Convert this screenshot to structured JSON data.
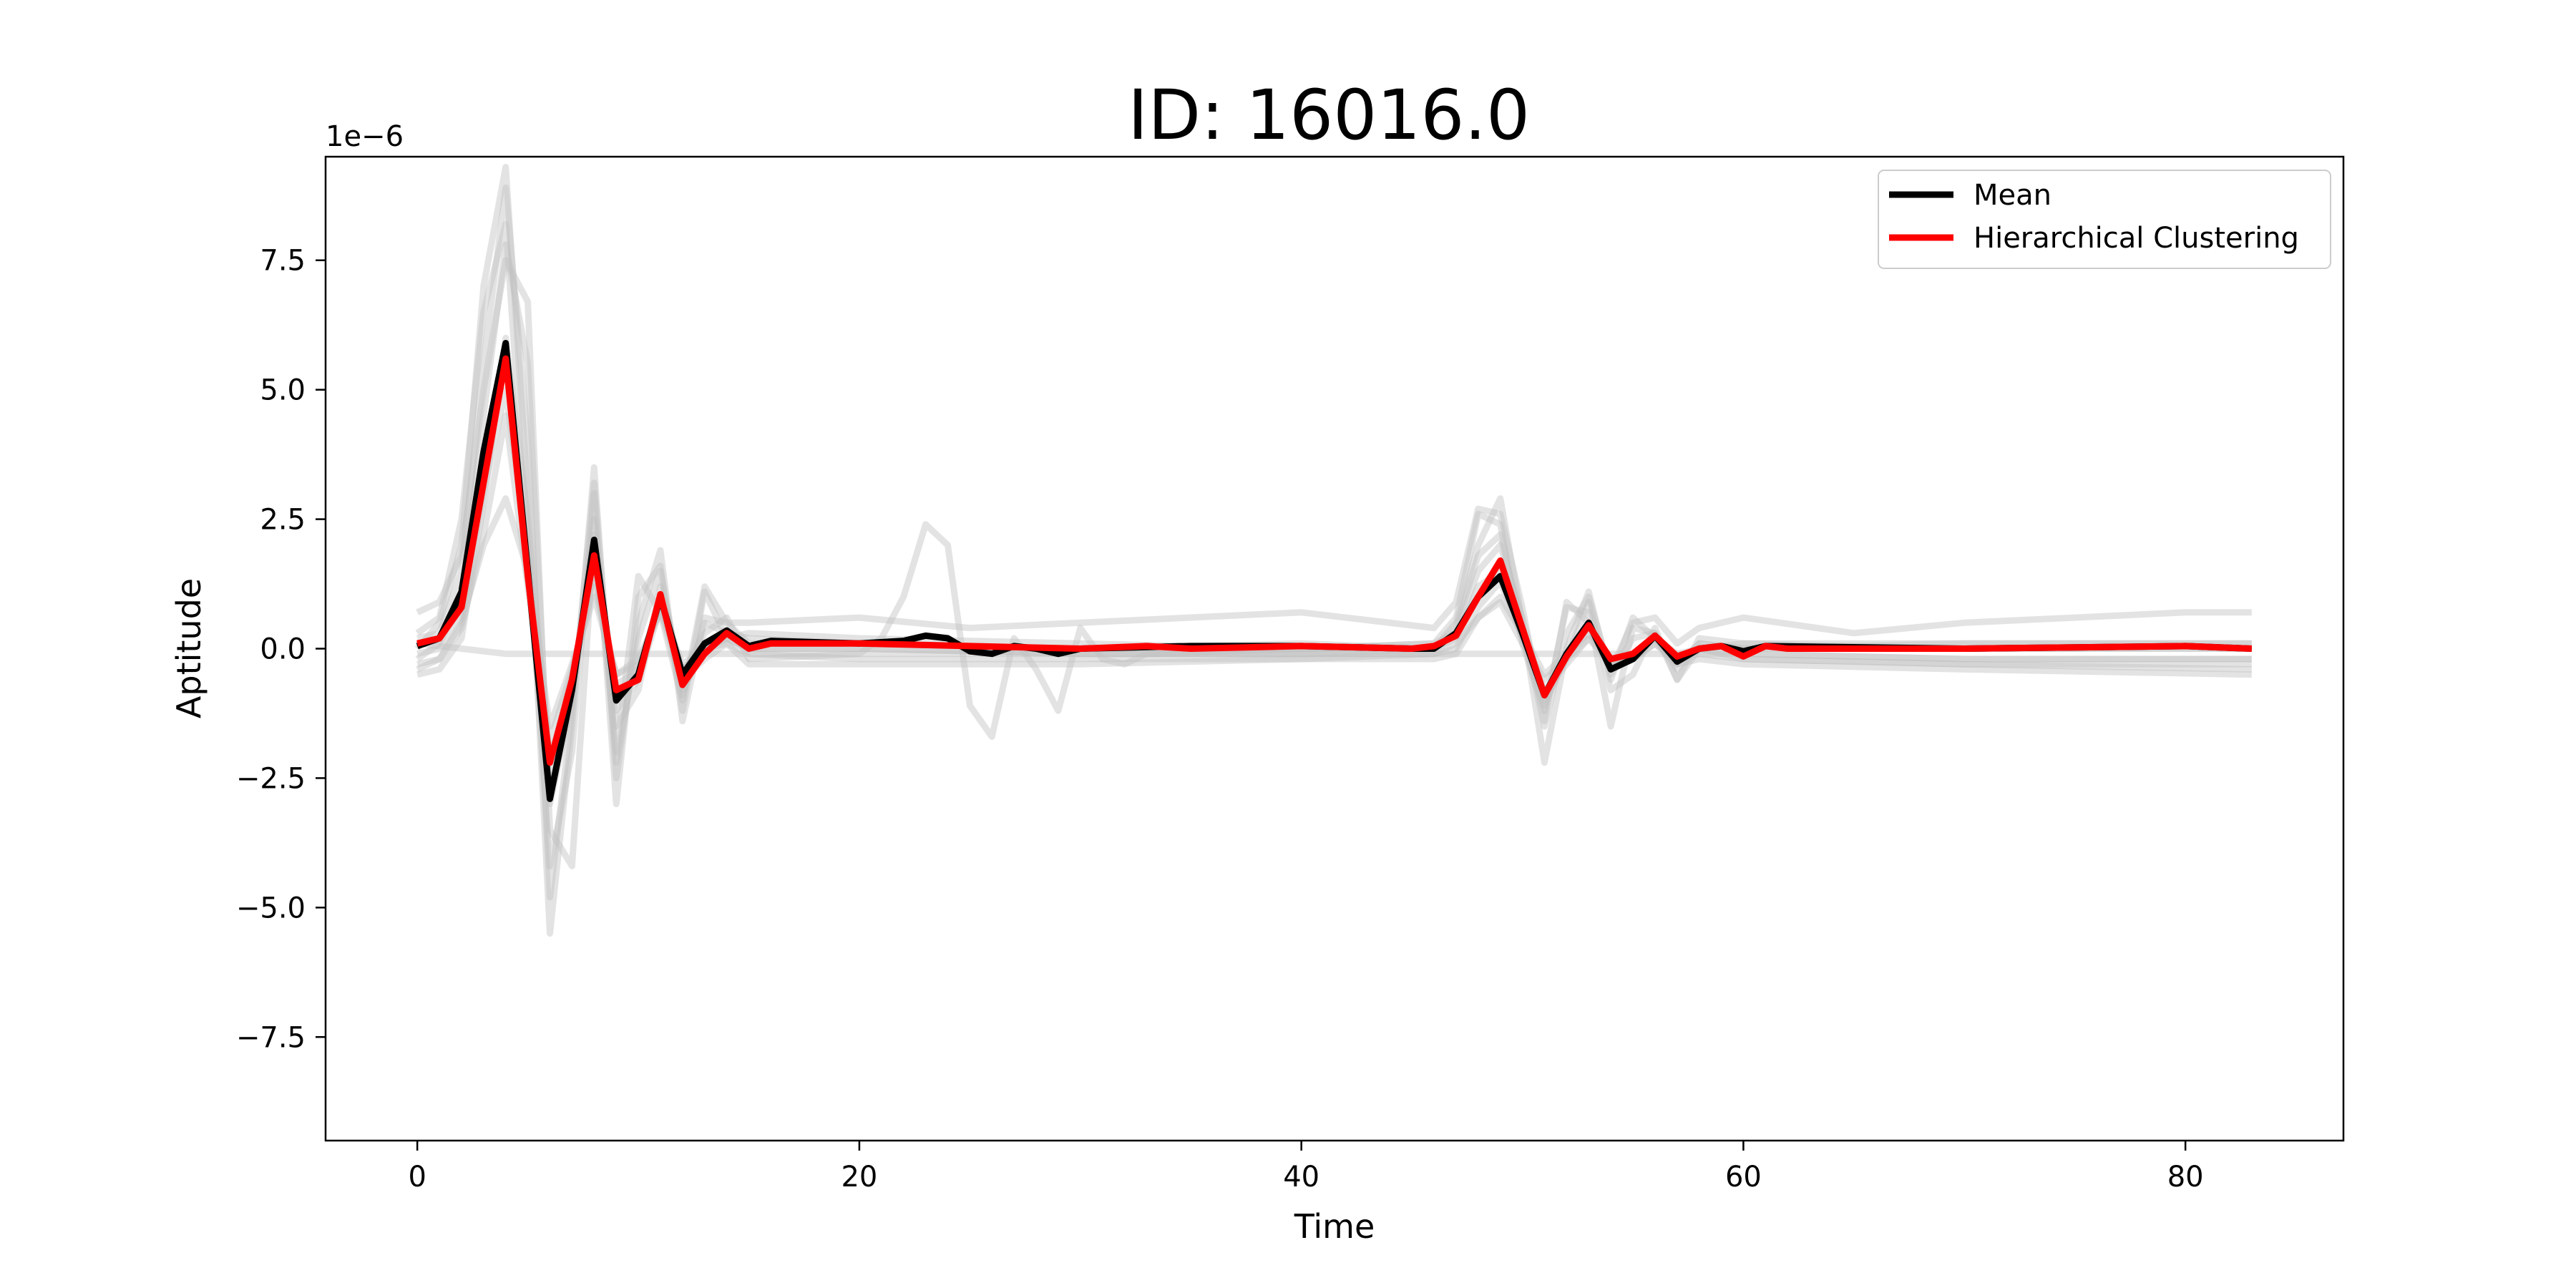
{
  "chart_data": {
    "type": "line",
    "title": "ID: 16016.0",
    "xlabel": "Time",
    "ylabel": "Aptitude",
    "y_offset_label": "1e−6",
    "y_scale": 1e-06,
    "xlim": [
      -4.15,
      87.15
    ],
    "ylim": [
      -9.5,
      9.5
    ],
    "xticks": [
      0,
      20,
      40,
      60,
      80
    ],
    "xtick_labels": [
      "0",
      "20",
      "40",
      "60",
      "80"
    ],
    "yticks": [
      -7.5,
      -5.0,
      -2.5,
      0.0,
      2.5,
      5.0,
      7.5
    ],
    "ytick_labels": [
      "−7.5",
      "−5.0",
      "−2.5",
      "0.0",
      "2.5",
      "5.0",
      "7.5"
    ],
    "grid": false,
    "legend_position": "top-right",
    "series": [
      {
        "name": "Mean",
        "color": "#000000",
        "x": [
          0,
          1,
          2,
          3,
          4,
          5,
          6,
          7,
          8,
          9,
          10,
          11,
          12,
          13,
          14,
          15,
          16,
          20,
          22,
          23,
          24,
          25,
          26,
          27,
          28,
          29,
          30,
          35,
          40,
          45,
          46,
          47,
          48,
          49,
          50,
          51,
          52,
          53,
          54,
          55,
          56,
          57,
          58,
          59,
          60,
          61,
          70,
          80,
          83
        ],
        "values": [
          0.05,
          0.2,
          1.1,
          3.8,
          5.9,
          1.5,
          -2.9,
          -0.8,
          2.1,
          -1.0,
          -0.5,
          1.0,
          -0.5,
          0.1,
          0.35,
          0.05,
          0.15,
          0.1,
          0.15,
          0.25,
          0.2,
          -0.05,
          -0.1,
          0.05,
          0.0,
          -0.1,
          0.0,
          0.05,
          0.05,
          0.0,
          0.0,
          0.3,
          1.0,
          1.4,
          0.3,
          -0.9,
          -0.1,
          0.5,
          -0.4,
          -0.2,
          0.25,
          -0.25,
          0.0,
          0.05,
          -0.05,
          0.05,
          0.0,
          0.05,
          0.0
        ]
      },
      {
        "name": "Hierarchical Clustering",
        "color": "#ff0000",
        "x": [
          0,
          1,
          2,
          3,
          4,
          5,
          6,
          7,
          8,
          9,
          10,
          11,
          12,
          13,
          14,
          15,
          16,
          20,
          25,
          30,
          33,
          35,
          40,
          45,
          46,
          47,
          48,
          49,
          50,
          51,
          52,
          53,
          54,
          55,
          56,
          57,
          58,
          59,
          60,
          61,
          62,
          70,
          80,
          83
        ],
        "values": [
          0.1,
          0.2,
          0.8,
          3.2,
          5.6,
          1.4,
          -2.2,
          -0.6,
          1.8,
          -0.8,
          -0.6,
          1.05,
          -0.7,
          -0.1,
          0.3,
          0.0,
          0.1,
          0.1,
          0.05,
          0.0,
          0.05,
          0.0,
          0.05,
          0.0,
          0.05,
          0.25,
          1.0,
          1.7,
          0.4,
          -0.9,
          -0.15,
          0.45,
          -0.2,
          -0.1,
          0.25,
          -0.15,
          0.0,
          0.05,
          -0.15,
          0.05,
          0.0,
          0.0,
          0.05,
          0.0
        ]
      }
    ],
    "background_series": [
      {
        "x": [
          0,
          1,
          2,
          3,
          4,
          5,
          6,
          7,
          8,
          9,
          10,
          11,
          12,
          13,
          14,
          15,
          20,
          30,
          40,
          46,
          47,
          48,
          49,
          50,
          51,
          52,
          53,
          54,
          55,
          56,
          57,
          58,
          60,
          70,
          83
        ],
        "values": [
          0.0,
          0.5,
          2.0,
          7.0,
          9.3,
          3.0,
          -5.5,
          -1.5,
          3.5,
          -2.5,
          0.5,
          1.9,
          -1.4,
          0.6,
          0.5,
          0.1,
          0.1,
          0.0,
          0.1,
          0.0,
          0.5,
          2.0,
          2.9,
          0.5,
          -2.2,
          0.0,
          1.1,
          -0.6,
          0.6,
          0.2,
          -0.4,
          0.1,
          0.0,
          0.0,
          0.0
        ]
      },
      {
        "x": [
          0,
          1,
          2,
          3,
          4,
          5,
          6,
          7,
          8,
          9,
          10,
          11,
          12,
          13,
          14,
          15,
          20,
          30,
          40,
          46,
          47,
          48,
          49,
          50,
          51,
          52,
          53,
          54,
          55,
          56,
          57,
          58,
          60,
          70,
          83
        ],
        "values": [
          0.3,
          0.6,
          2.5,
          6.5,
          8.2,
          2.0,
          -4.2,
          -2.0,
          3.0,
          -3.0,
          1.0,
          1.6,
          -1.2,
          1.1,
          0.2,
          0.3,
          0.2,
          0.1,
          0.0,
          0.1,
          0.6,
          2.6,
          2.4,
          0.1,
          -1.2,
          0.8,
          0.7,
          -1.5,
          0.4,
          0.3,
          -0.6,
          0.2,
          0.1,
          0.1,
          0.1
        ]
      },
      {
        "x": [
          0,
          1,
          2,
          3,
          4,
          5,
          6,
          7,
          8,
          9,
          10,
          11,
          12,
          13,
          14,
          15,
          20,
          30,
          40,
          46,
          47,
          48,
          49,
          50,
          51,
          52,
          53,
          54,
          55,
          56,
          57,
          58,
          60,
          70,
          83
        ],
        "values": [
          -0.4,
          -0.2,
          0.5,
          2.0,
          2.9,
          1.5,
          -1.5,
          -0.3,
          1.0,
          -0.5,
          -0.3,
          0.8,
          -0.3,
          0.0,
          0.2,
          0.0,
          0.0,
          -0.1,
          -0.1,
          -0.1,
          0.1,
          0.6,
          1.0,
          0.3,
          -0.5,
          -0.1,
          0.3,
          -0.2,
          -0.1,
          0.2,
          -0.1,
          0.0,
          -0.2,
          -0.3,
          -0.3
        ]
      },
      {
        "x": [
          0,
          1,
          2,
          3,
          4,
          5,
          6,
          7,
          8,
          9,
          10,
          11,
          12,
          13,
          14,
          15,
          20,
          25,
          30,
          40,
          46,
          47,
          48,
          49,
          50,
          51,
          52,
          53,
          54,
          55,
          56,
          57,
          58,
          60,
          65,
          70,
          75,
          80,
          83
        ],
        "values": [
          0.7,
          0.9,
          1.8,
          5.0,
          7.5,
          6.7,
          -3.5,
          -4.2,
          2.2,
          -2.0,
          1.4,
          0.7,
          -1.0,
          1.2,
          0.5,
          0.5,
          0.6,
          0.4,
          0.5,
          0.7,
          0.4,
          0.9,
          2.7,
          2.6,
          0.8,
          -1.4,
          0.9,
          0.5,
          -0.4,
          0.5,
          0.6,
          0.1,
          0.4,
          0.6,
          0.3,
          0.5,
          0.6,
          0.7,
          0.7
        ]
      },
      {
        "x": [
          0,
          1,
          2,
          3,
          4,
          5,
          6,
          7,
          8,
          9,
          10,
          11,
          12,
          13,
          14,
          15,
          20,
          21,
          22,
          23,
          24,
          25,
          26,
          27,
          28,
          29,
          30,
          31,
          32,
          33,
          40,
          46,
          47,
          48,
          49,
          50,
          51,
          52,
          53,
          54,
          55,
          56,
          57,
          58,
          60,
          70,
          83
        ],
        "values": [
          -0.2,
          0.1,
          1.0,
          4.5,
          7.8,
          5.5,
          -3.0,
          -1.0,
          2.5,
          -1.5,
          -0.8,
          1.2,
          -0.5,
          0.3,
          0.6,
          -0.2,
          -0.1,
          0.2,
          1.0,
          2.4,
          2.0,
          -1.1,
          -1.7,
          0.2,
          -0.4,
          -1.2,
          0.4,
          -0.2,
          -0.3,
          -0.1,
          0.0,
          0.1,
          0.3,
          1.5,
          2.0,
          0.6,
          -1.0,
          -0.2,
          0.9,
          -0.8,
          -0.5,
          0.4,
          -0.6,
          0.0,
          0.1,
          0.0,
          0.0
        ]
      },
      {
        "x": [
          0,
          1,
          2,
          3,
          4,
          5,
          6,
          7,
          8,
          9,
          10,
          11,
          12,
          13,
          14,
          15,
          20,
          30,
          40,
          46,
          47,
          48,
          49,
          50,
          51,
          52,
          53,
          54,
          55,
          56,
          57,
          58,
          60,
          70,
          83
        ],
        "values": [
          -0.5,
          -0.4,
          0.2,
          2.8,
          6.0,
          2.5,
          -2.2,
          -0.5,
          1.5,
          -0.7,
          -0.4,
          0.9,
          -0.6,
          -0.2,
          0.1,
          -0.3,
          -0.3,
          -0.3,
          -0.2,
          -0.1,
          0.0,
          0.8,
          1.3,
          0.2,
          -0.8,
          -0.3,
          0.2,
          -0.3,
          -0.2,
          0.1,
          -0.3,
          -0.2,
          -0.3,
          -0.4,
          -0.5
        ]
      },
      {
        "x": [
          0,
          1,
          2,
          3,
          4,
          5,
          6,
          7,
          8,
          9,
          10,
          11,
          12,
          13,
          14,
          15,
          20,
          30,
          40,
          46,
          47,
          48,
          49,
          50,
          51,
          52,
          53,
          54,
          55,
          56,
          57,
          58,
          60,
          70,
          83
        ],
        "values": [
          0.2,
          0.3,
          1.5,
          5.5,
          8.9,
          4.0,
          -4.8,
          -1.2,
          3.2,
          -2.2,
          0.2,
          1.5,
          -0.9,
          0.5,
          0.3,
          0.2,
          0.1,
          0.0,
          0.0,
          0.0,
          0.4,
          1.8,
          2.2,
          0.4,
          -1.5,
          0.3,
          1.0,
          -0.5,
          0.2,
          0.3,
          -0.3,
          0.1,
          0.0,
          0.1,
          0.1
        ]
      },
      {
        "x": [
          0,
          1,
          2,
          3,
          4,
          5,
          6,
          7,
          8,
          9,
          10,
          11,
          12,
          13,
          14,
          15,
          20,
          30,
          40,
          46,
          47,
          48,
          49,
          50,
          51,
          52,
          53,
          54,
          55,
          56,
          57,
          58,
          60,
          70,
          83
        ],
        "values": [
          -0.1,
          0.0,
          0.6,
          3.0,
          5.0,
          1.8,
          -2.5,
          -0.8,
          1.6,
          -1.2,
          -0.6,
          0.8,
          -0.8,
          0.0,
          0.2,
          0.0,
          0.0,
          -0.1,
          -0.1,
          0.0,
          0.2,
          1.2,
          1.5,
          0.2,
          -1.1,
          -0.1,
          0.4,
          -0.3,
          -0.2,
          0.2,
          -0.2,
          0.0,
          -0.1,
          -0.2,
          -0.2
        ]
      },
      {
        "x": [
          0,
          2,
          4,
          6,
          8,
          10,
          15,
          20,
          30,
          40,
          50,
          60,
          70,
          83
        ],
        "values": [
          0.1,
          0.0,
          -0.1,
          -0.1,
          -0.1,
          -0.1,
          -0.1,
          -0.1,
          -0.1,
          -0.1,
          -0.1,
          -0.1,
          -0.2,
          -0.2
        ]
      },
      {
        "x": [
          0,
          1,
          2,
          3,
          4,
          5,
          6,
          7,
          8,
          9,
          10,
          11,
          12,
          13,
          14,
          15,
          20,
          30,
          40,
          46,
          47,
          48,
          49,
          50,
          51,
          52,
          53,
          54,
          55,
          56,
          57,
          58,
          60,
          70,
          83
        ],
        "values": [
          -0.3,
          -0.2,
          0.4,
          2.2,
          4.5,
          1.2,
          -1.8,
          -0.4,
          1.2,
          -0.5,
          -0.2,
          0.7,
          -0.4,
          0.0,
          0.1,
          -0.1,
          -0.2,
          -0.2,
          -0.2,
          -0.2,
          -0.1,
          0.6,
          0.9,
          0.1,
          -0.6,
          -0.2,
          0.2,
          -0.2,
          -0.2,
          0.1,
          -0.2,
          -0.1,
          -0.2,
          -0.3,
          -0.4
        ]
      }
    ],
    "background_color": "#c0c0c0"
  }
}
